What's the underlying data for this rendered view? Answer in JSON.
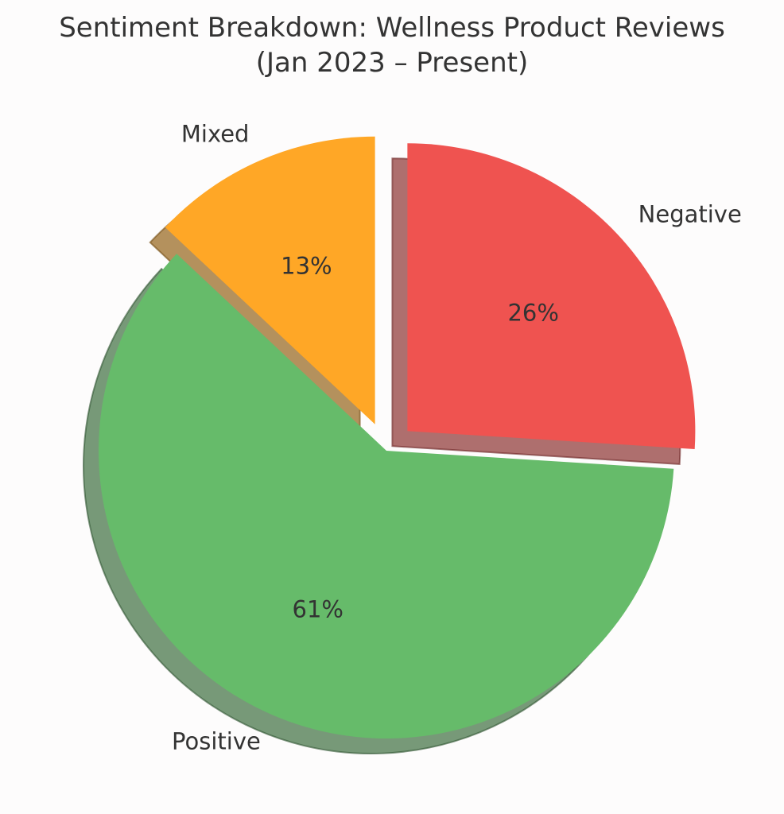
{
  "chart_data": {
    "type": "pie",
    "title_lines": [
      "Sentiment Breakdown: Wellness Product Reviews",
      "(Jan 2023 – Present)"
    ],
    "start_angle_deg": 90,
    "direction": "clockwise",
    "shadow": true,
    "slices": [
      {
        "label": "Negative",
        "value": 26,
        "pct_label": "26%",
        "color": "#ef5350",
        "exploded": true
      },
      {
        "label": "Positive",
        "value": 61,
        "pct_label": "61%",
        "color": "#66bb6a",
        "exploded": false
      },
      {
        "label": "Mixed",
        "value": 13,
        "pct_label": "13%",
        "color": "#ffa726",
        "exploded": true
      }
    ]
  }
}
